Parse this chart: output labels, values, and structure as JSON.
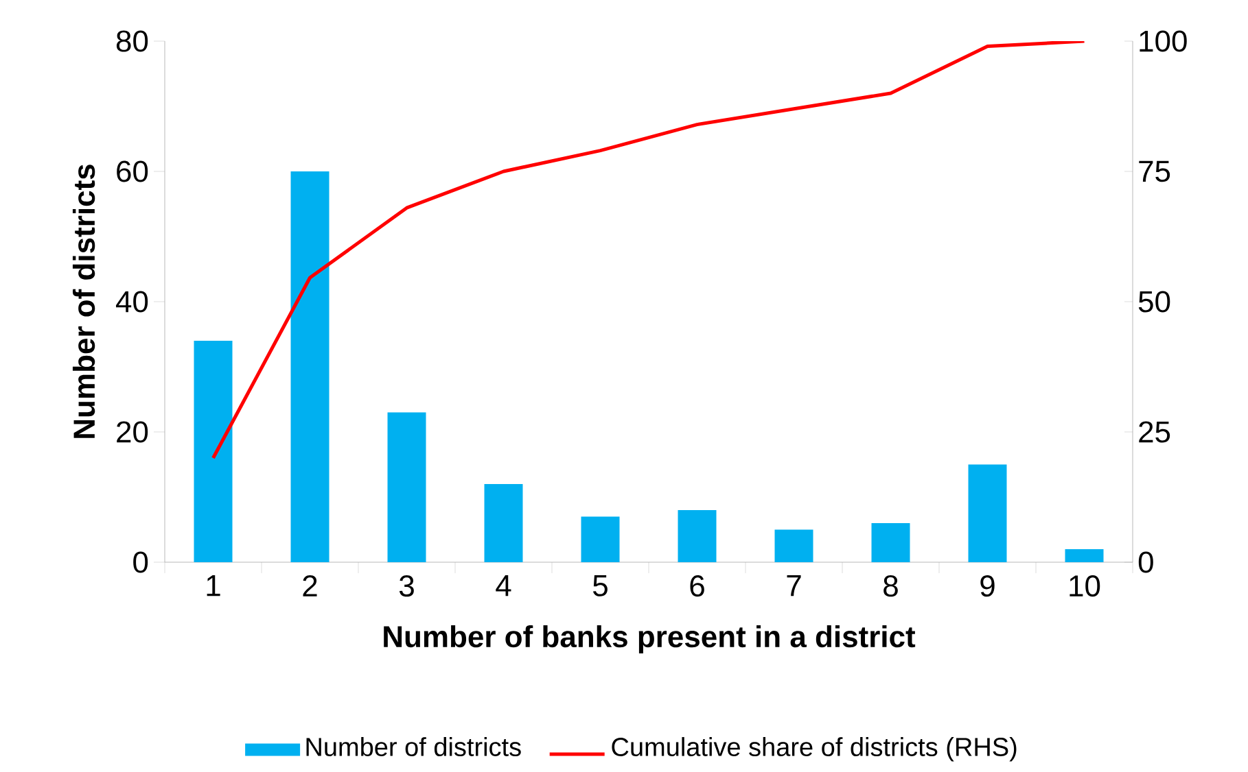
{
  "chart_data": {
    "type": "bar",
    "xlabel": "Number of banks present in a district",
    "ylabel": "Number of districts",
    "categories": [
      "1",
      "2",
      "3",
      "4",
      "5",
      "6",
      "7",
      "8",
      "9",
      "10"
    ],
    "series": [
      {
        "name": "Number of districts",
        "color": "#00b0f0",
        "values": [
          34,
          60,
          23,
          12,
          7,
          8,
          5,
          6,
          15,
          2
        ]
      },
      {
        "name": "Cumulative share of districts (RHS)",
        "type": "line",
        "axis": "y2",
        "color": "#ff0000",
        "values": [
          20,
          54.6,
          68,
          75,
          79,
          84,
          87,
          90,
          99,
          100
        ]
      }
    ],
    "ylim": [
      0,
      80
    ],
    "yticks": [
      0,
      20,
      40,
      60,
      80
    ],
    "y2lim": [
      0,
      100
    ],
    "y2ticks": [
      0,
      25,
      50,
      75,
      100
    ],
    "grid": false,
    "legend": "bottom",
    "marker": "none"
  }
}
